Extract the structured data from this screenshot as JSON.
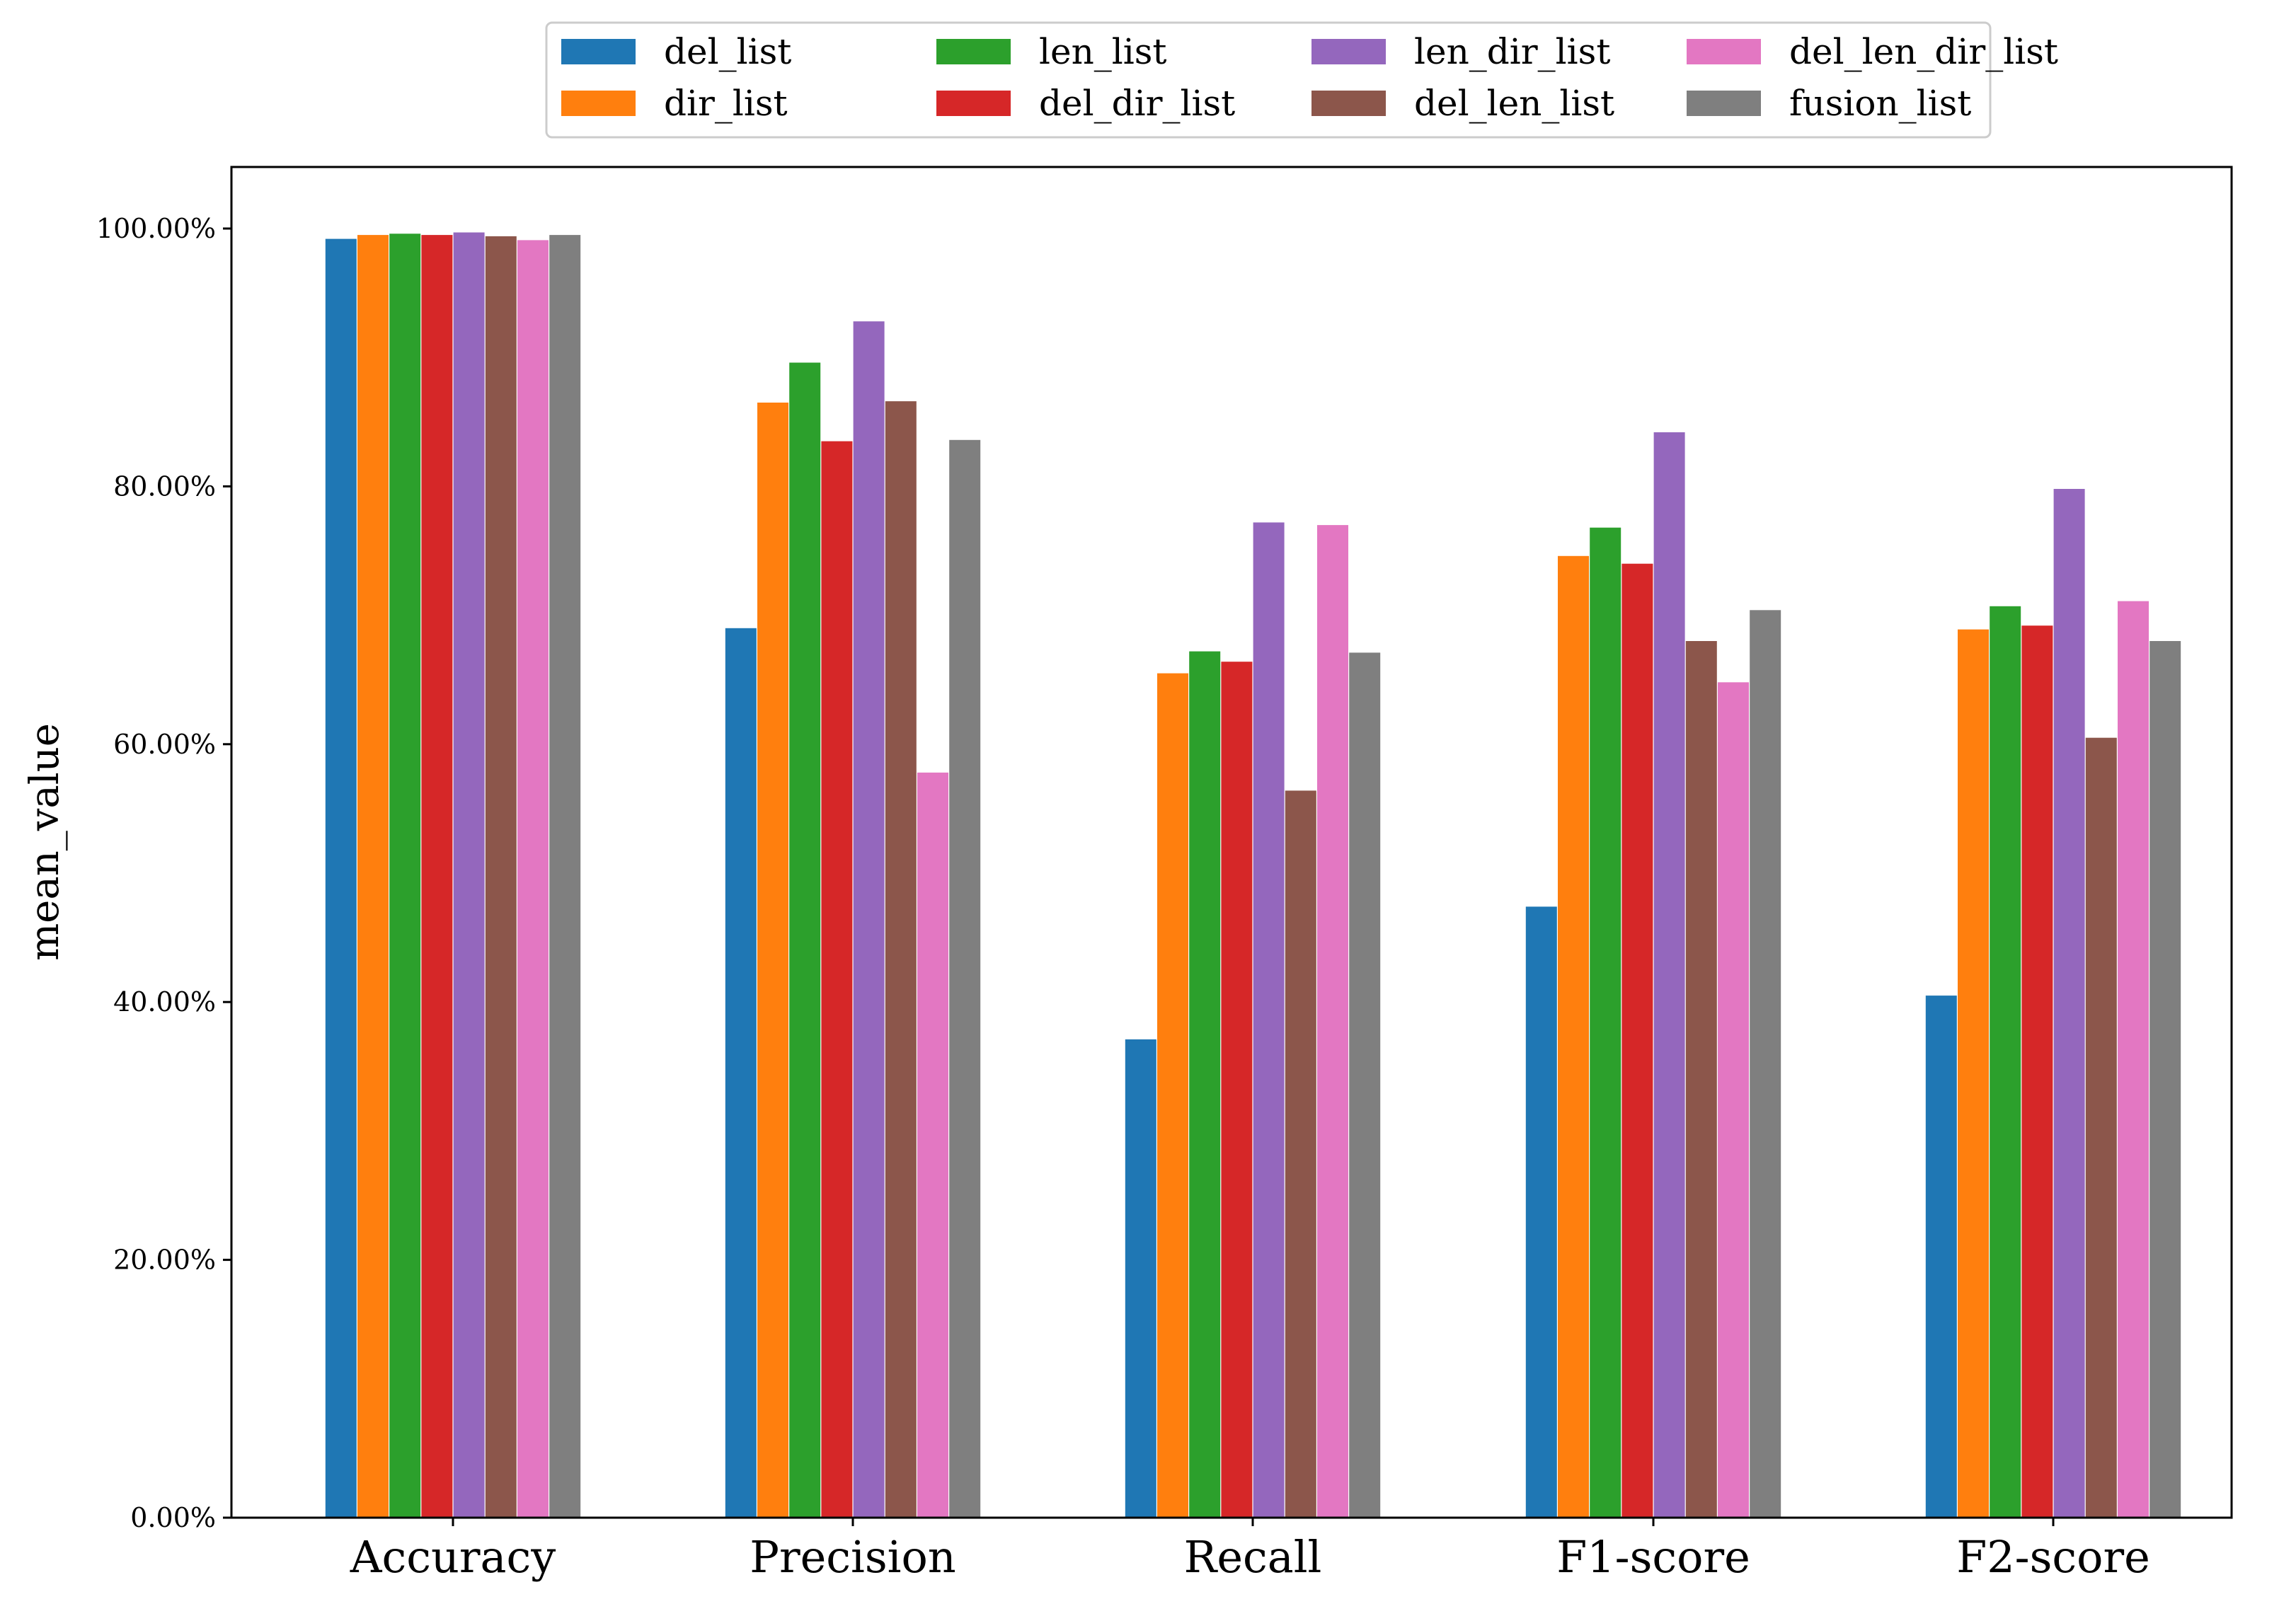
{
  "chart_data": {
    "type": "bar",
    "title": "",
    "xlabel": "",
    "ylabel": "mean_value",
    "ylim": [
      0,
      1.04
    ],
    "yticks": [
      0,
      0.2,
      0.4,
      0.6,
      0.8,
      1.0
    ],
    "ytick_labels": [
      "0.00%",
      "20.00%",
      "40.00%",
      "60.00%",
      "80.00%",
      "100.00%"
    ],
    "categories": [
      "Accuracy",
      "Precision",
      "Recall",
      "F1-score",
      "F2-score"
    ],
    "legend_position": "top-center, outside plot, 4 columns",
    "grid": false,
    "series": [
      {
        "name": "del_list",
        "color": "#1f77b4",
        "values": [
          0.992,
          0.69,
          0.371,
          0.474,
          0.405
        ]
      },
      {
        "name": "dir_list",
        "color": "#ff7f0e",
        "values": [
          0.995,
          0.865,
          0.655,
          0.746,
          0.689
        ]
      },
      {
        "name": "len_list",
        "color": "#2ca02c",
        "values": [
          0.996,
          0.896,
          0.672,
          0.768,
          0.707
        ]
      },
      {
        "name": "del_dir_list",
        "color": "#d62728",
        "values": [
          0.995,
          0.835,
          0.664,
          0.74,
          0.692
        ]
      },
      {
        "name": "len_dir_list",
        "color": "#9467bd",
        "values": [
          0.997,
          0.928,
          0.772,
          0.842,
          0.798
        ]
      },
      {
        "name": "del_len_list",
        "color": "#8c564b",
        "values": [
          0.994,
          0.866,
          0.564,
          0.68,
          0.605
        ]
      },
      {
        "name": "del_len_dir_list",
        "color": "#e377c2",
        "values": [
          0.991,
          0.578,
          0.77,
          0.648,
          0.711
        ]
      },
      {
        "name": "fusion_list",
        "color": "#7f7f7f",
        "values": [
          0.995,
          0.836,
          0.671,
          0.704,
          0.68
        ]
      }
    ]
  }
}
